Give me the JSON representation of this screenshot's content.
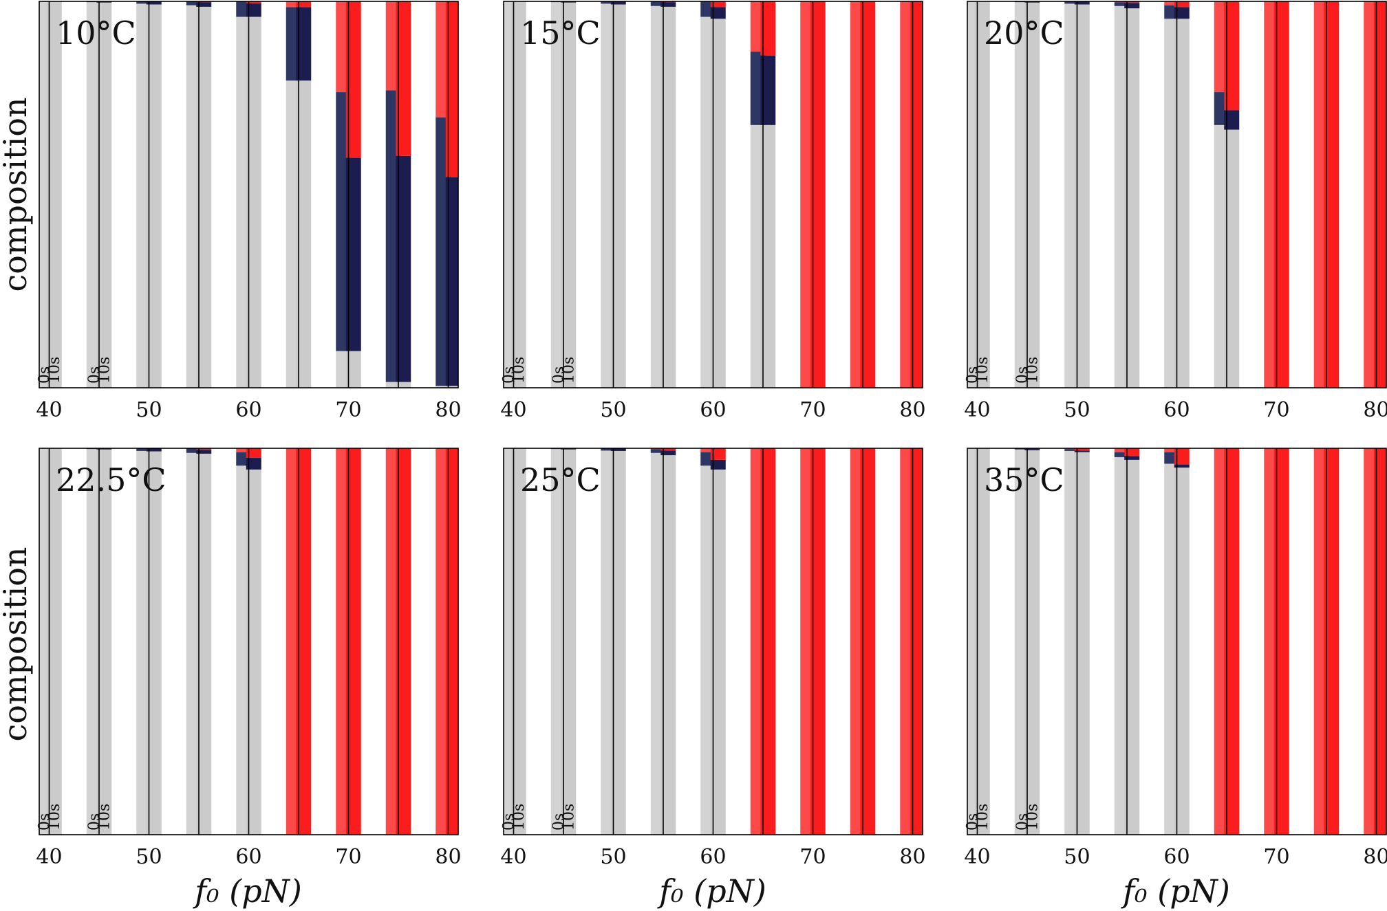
{
  "chart_data": {
    "type": "bar",
    "subtype": "stacked-composition",
    "ylabel": "composition",
    "xlabel": "f₀ (pN)",
    "xlim": [
      39,
      81
    ],
    "ylim": [
      0,
      1
    ],
    "x_ticks": [
      40,
      50,
      60,
      70,
      80
    ],
    "f0": [
      40,
      45,
      50,
      55,
      60,
      65,
      70,
      75,
      80
    ],
    "time_labels": [
      "0s",
      "10s"
    ],
    "series": [
      {
        "name": "",
        "color": "#d3d3d3",
        "color_0s": "#d3d3d3",
        "color_10s": "#cbcbcb"
      },
      {
        "name": "",
        "color": "#1c1c4e",
        "color_0s": "#2e3664",
        "color_10s": "#1c1c4e"
      },
      {
        "name": "",
        "color": "#fb1d1d",
        "color_0s": "#fc4a4a",
        "color_10s": "#fb1d1d"
      }
    ],
    "panels": [
      {
        "temperature": "10°C",
        "bars": [
          {
            "f0": 40,
            "t": "0s",
            "values": [
              1.0,
              0.0,
              0.0
            ]
          },
          {
            "f0": 40,
            "t": "10s",
            "values": [
              1.0,
              0.0,
              0.0
            ]
          },
          {
            "f0": 45,
            "t": "0s",
            "values": [
              0.998,
              0.002,
              0.0
            ]
          },
          {
            "f0": 45,
            "t": "10s",
            "values": [
              0.997,
              0.003,
              0.0
            ]
          },
          {
            "f0": 50,
            "t": "0s",
            "values": [
              0.994,
              0.006,
              0.0
            ]
          },
          {
            "f0": 50,
            "t": "10s",
            "values": [
              0.992,
              0.008,
              0.0
            ]
          },
          {
            "f0": 55,
            "t": "0s",
            "values": [
              0.99,
              0.01,
              0.0
            ]
          },
          {
            "f0": 55,
            "t": "10s",
            "values": [
              0.986,
              0.012,
              0.002
            ]
          },
          {
            "f0": 60,
            "t": "0s",
            "values": [
              0.96,
              0.04,
              0.0
            ]
          },
          {
            "f0": 60,
            "t": "10s",
            "values": [
              0.96,
              0.035,
              0.005
            ]
          },
          {
            "f0": 65,
            "t": "0s",
            "values": [
              0.795,
              0.19,
              0.015
            ]
          },
          {
            "f0": 65,
            "t": "10s",
            "values": [
              0.795,
              0.19,
              0.015
            ]
          },
          {
            "f0": 70,
            "t": "0s",
            "values": [
              0.095,
              0.67,
              0.235
            ]
          },
          {
            "f0": 70,
            "t": "10s",
            "values": [
              0.095,
              0.5,
              0.405
            ]
          },
          {
            "f0": 75,
            "t": "0s",
            "values": [
              0.015,
              0.755,
              0.23
            ]
          },
          {
            "f0": 75,
            "t": "10s",
            "values": [
              0.015,
              0.585,
              0.4
            ]
          },
          {
            "f0": 80,
            "t": "0s",
            "values": [
              0.005,
              0.695,
              0.3
            ]
          },
          {
            "f0": 80,
            "t": "10s",
            "values": [
              0.005,
              0.54,
              0.455
            ]
          }
        ]
      },
      {
        "temperature": "15°C",
        "bars": [
          {
            "f0": 40,
            "t": "0s",
            "values": [
              1.0,
              0.0,
              0.0
            ]
          },
          {
            "f0": 40,
            "t": "10s",
            "values": [
              1.0,
              0.0,
              0.0
            ]
          },
          {
            "f0": 45,
            "t": "0s",
            "values": [
              0.998,
              0.002,
              0.0
            ]
          },
          {
            "f0": 45,
            "t": "10s",
            "values": [
              0.997,
              0.003,
              0.0
            ]
          },
          {
            "f0": 50,
            "t": "0s",
            "values": [
              0.994,
              0.006,
              0.0
            ]
          },
          {
            "f0": 50,
            "t": "10s",
            "values": [
              0.992,
              0.008,
              0.0
            ]
          },
          {
            "f0": 55,
            "t": "0s",
            "values": [
              0.988,
              0.012,
              0.0
            ]
          },
          {
            "f0": 55,
            "t": "10s",
            "values": [
              0.986,
              0.012,
              0.002
            ]
          },
          {
            "f0": 60,
            "t": "0s",
            "values": [
              0.96,
              0.04,
              0.0
            ]
          },
          {
            "f0": 60,
            "t": "10s",
            "values": [
              0.955,
              0.03,
              0.015
            ]
          },
          {
            "f0": 65,
            "t": "0s",
            "values": [
              0.68,
              0.19,
              0.13
            ]
          },
          {
            "f0": 65,
            "t": "10s",
            "values": [
              0.68,
              0.18,
              0.14
            ]
          },
          {
            "f0": 70,
            "t": "0s",
            "values": [
              0.0,
              0.0,
              1.0
            ]
          },
          {
            "f0": 70,
            "t": "10s",
            "values": [
              0.0,
              0.0,
              1.0
            ]
          },
          {
            "f0": 75,
            "t": "0s",
            "values": [
              0.0,
              0.0,
              1.0
            ]
          },
          {
            "f0": 75,
            "t": "10s",
            "values": [
              0.0,
              0.0,
              1.0
            ]
          },
          {
            "f0": 80,
            "t": "0s",
            "values": [
              0.0,
              0.0,
              1.0
            ]
          },
          {
            "f0": 80,
            "t": "10s",
            "values": [
              0.0,
              0.0,
              1.0
            ]
          }
        ]
      },
      {
        "temperature": "20°C",
        "bars": [
          {
            "f0": 40,
            "t": "0s",
            "values": [
              1.0,
              0.0,
              0.0
            ]
          },
          {
            "f0": 40,
            "t": "10s",
            "values": [
              1.0,
              0.0,
              0.0
            ]
          },
          {
            "f0": 45,
            "t": "0s",
            "values": [
              0.998,
              0.002,
              0.0
            ]
          },
          {
            "f0": 45,
            "t": "10s",
            "values": [
              0.997,
              0.003,
              0.0
            ]
          },
          {
            "f0": 50,
            "t": "0s",
            "values": [
              0.994,
              0.006,
              0.0
            ]
          },
          {
            "f0": 50,
            "t": "10s",
            "values": [
              0.992,
              0.008,
              0.0
            ]
          },
          {
            "f0": 55,
            "t": "0s",
            "values": [
              0.988,
              0.01,
              0.002
            ]
          },
          {
            "f0": 55,
            "t": "10s",
            "values": [
              0.982,
              0.014,
              0.004
            ]
          },
          {
            "f0": 60,
            "t": "0s",
            "values": [
              0.955,
              0.035,
              0.01
            ]
          },
          {
            "f0": 60,
            "t": "10s",
            "values": [
              0.955,
              0.03,
              0.015
            ]
          },
          {
            "f0": 65,
            "t": "0s",
            "values": [
              0.68,
              0.085,
              0.235
            ]
          },
          {
            "f0": 65,
            "t": "10s",
            "values": [
              0.668,
              0.05,
              0.282
            ]
          },
          {
            "f0": 70,
            "t": "0s",
            "values": [
              0.0,
              0.0,
              1.0
            ]
          },
          {
            "f0": 70,
            "t": "10s",
            "values": [
              0.0,
              0.0,
              1.0
            ]
          },
          {
            "f0": 75,
            "t": "0s",
            "values": [
              0.0,
              0.0,
              1.0
            ]
          },
          {
            "f0": 75,
            "t": "10s",
            "values": [
              0.0,
              0.0,
              1.0
            ]
          },
          {
            "f0": 80,
            "t": "0s",
            "values": [
              0.0,
              0.0,
              1.0
            ]
          },
          {
            "f0": 80,
            "t": "10s",
            "values": [
              0.0,
              0.0,
              1.0
            ]
          }
        ]
      },
      {
        "temperature": "22.5°C",
        "bars": [
          {
            "f0": 40,
            "t": "0s",
            "values": [
              1.0,
              0.0,
              0.0
            ]
          },
          {
            "f0": 40,
            "t": "10s",
            "values": [
              1.0,
              0.0,
              0.0
            ]
          },
          {
            "f0": 45,
            "t": "0s",
            "values": [
              0.998,
              0.002,
              0.0
            ]
          },
          {
            "f0": 45,
            "t": "10s",
            "values": [
              0.997,
              0.003,
              0.0
            ]
          },
          {
            "f0": 50,
            "t": "0s",
            "values": [
              0.993,
              0.007,
              0.0
            ]
          },
          {
            "f0": 50,
            "t": "10s",
            "values": [
              0.992,
              0.008,
              0.0
            ]
          },
          {
            "f0": 55,
            "t": "0s",
            "values": [
              0.988,
              0.012,
              0.0
            ]
          },
          {
            "f0": 55,
            "t": "10s",
            "values": [
              0.986,
              0.01,
              0.004
            ]
          },
          {
            "f0": 60,
            "t": "0s",
            "values": [
              0.955,
              0.035,
              0.01
            ]
          },
          {
            "f0": 60,
            "t": "10s",
            "values": [
              0.945,
              0.03,
              0.025
            ]
          },
          {
            "f0": 65,
            "t": "0s",
            "values": [
              0.0,
              0.0,
              1.0
            ]
          },
          {
            "f0": 65,
            "t": "10s",
            "values": [
              0.0,
              0.0,
              1.0
            ]
          },
          {
            "f0": 70,
            "t": "0s",
            "values": [
              0.0,
              0.0,
              1.0
            ]
          },
          {
            "f0": 70,
            "t": "10s",
            "values": [
              0.0,
              0.0,
              1.0
            ]
          },
          {
            "f0": 75,
            "t": "0s",
            "values": [
              0.0,
              0.0,
              1.0
            ]
          },
          {
            "f0": 75,
            "t": "10s",
            "values": [
              0.0,
              0.0,
              1.0
            ]
          },
          {
            "f0": 80,
            "t": "0s",
            "values": [
              0.0,
              0.0,
              1.0
            ]
          },
          {
            "f0": 80,
            "t": "10s",
            "values": [
              0.0,
              0.0,
              1.0
            ]
          }
        ]
      },
      {
        "temperature": "25°C",
        "bars": [
          {
            "f0": 40,
            "t": "0s",
            "values": [
              1.0,
              0.0,
              0.0
            ]
          },
          {
            "f0": 40,
            "t": "10s",
            "values": [
              1.0,
              0.0,
              0.0
            ]
          },
          {
            "f0": 45,
            "t": "0s",
            "values": [
              0.998,
              0.002,
              0.0
            ]
          },
          {
            "f0": 45,
            "t": "10s",
            "values": [
              0.997,
              0.003,
              0.0
            ]
          },
          {
            "f0": 50,
            "t": "0s",
            "values": [
              0.994,
              0.006,
              0.0
            ]
          },
          {
            "f0": 50,
            "t": "10s",
            "values": [
              0.993,
              0.007,
              0.0
            ]
          },
          {
            "f0": 55,
            "t": "0s",
            "values": [
              0.988,
              0.01,
              0.002
            ]
          },
          {
            "f0": 55,
            "t": "10s",
            "values": [
              0.982,
              0.012,
              0.006
            ]
          },
          {
            "f0": 60,
            "t": "0s",
            "values": [
              0.955,
              0.035,
              0.01
            ]
          },
          {
            "f0": 60,
            "t": "10s",
            "values": [
              0.945,
              0.025,
              0.03
            ]
          },
          {
            "f0": 65,
            "t": "0s",
            "values": [
              0.0,
              0.0,
              1.0
            ]
          },
          {
            "f0": 65,
            "t": "10s",
            "values": [
              0.0,
              0.0,
              1.0
            ]
          },
          {
            "f0": 70,
            "t": "0s",
            "values": [
              0.0,
              0.0,
              1.0
            ]
          },
          {
            "f0": 70,
            "t": "10s",
            "values": [
              0.0,
              0.0,
              1.0
            ]
          },
          {
            "f0": 75,
            "t": "0s",
            "values": [
              0.0,
              0.0,
              1.0
            ]
          },
          {
            "f0": 75,
            "t": "10s",
            "values": [
              0.0,
              0.0,
              1.0
            ]
          },
          {
            "f0": 80,
            "t": "0s",
            "values": [
              0.0,
              0.0,
              1.0
            ]
          },
          {
            "f0": 80,
            "t": "10s",
            "values": [
              0.0,
              0.0,
              1.0
            ]
          }
        ]
      },
      {
        "temperature": "35°C",
        "bars": [
          {
            "f0": 40,
            "t": "0s",
            "values": [
              1.0,
              0.0,
              0.0
            ]
          },
          {
            "f0": 40,
            "t": "10s",
            "values": [
              1.0,
              0.0,
              0.0
            ]
          },
          {
            "f0": 45,
            "t": "0s",
            "values": [
              0.997,
              0.003,
              0.0
            ]
          },
          {
            "f0": 45,
            "t": "10s",
            "values": [
              0.995,
              0.004,
              0.001
            ]
          },
          {
            "f0": 50,
            "t": "0s",
            "values": [
              0.993,
              0.005,
              0.002
            ]
          },
          {
            "f0": 50,
            "t": "10s",
            "values": [
              0.99,
              0.004,
              0.006
            ]
          },
          {
            "f0": 55,
            "t": "0s",
            "values": [
              0.977,
              0.013,
              0.01
            ]
          },
          {
            "f0": 55,
            "t": "10s",
            "values": [
              0.97,
              0.01,
              0.02
            ]
          },
          {
            "f0": 60,
            "t": "0s",
            "values": [
              0.96,
              0.03,
              0.01
            ]
          },
          {
            "f0": 60,
            "t": "10s",
            "values": [
              0.95,
              0.008,
              0.042
            ]
          },
          {
            "f0": 65,
            "t": "0s",
            "values": [
              0.0,
              0.0,
              1.0
            ]
          },
          {
            "f0": 65,
            "t": "10s",
            "values": [
              0.0,
              0.0,
              1.0
            ]
          },
          {
            "f0": 70,
            "t": "0s",
            "values": [
              0.0,
              0.0,
              1.0
            ]
          },
          {
            "f0": 70,
            "t": "10s",
            "values": [
              0.0,
              0.0,
              1.0
            ]
          },
          {
            "f0": 75,
            "t": "0s",
            "values": [
              0.0,
              0.0,
              1.0
            ]
          },
          {
            "f0": 75,
            "t": "10s",
            "values": [
              0.0,
              0.0,
              1.0
            ]
          },
          {
            "f0": 80,
            "t": "0s",
            "values": [
              0.0,
              0.0,
              1.0
            ]
          },
          {
            "f0": 80,
            "t": "10s",
            "values": [
              0.0,
              0.0,
              1.0
            ]
          }
        ]
      }
    ]
  }
}
